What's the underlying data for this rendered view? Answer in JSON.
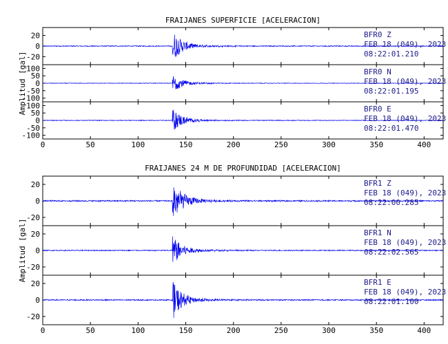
{
  "chart_data": [
    {
      "type": "line",
      "title": "FRAIJANES SUPERFICIE [ACELERACION]",
      "ylabel": "Amplitud [gal]",
      "xlim": [
        0,
        420
      ],
      "x_ticks": [
        "0",
        "50",
        "100",
        "150",
        "200",
        "250",
        "300",
        "350",
        "400"
      ],
      "series": [
        {
          "station": "BFR0",
          "component": "Z",
          "date": "FEB 18 (049), 2023",
          "time": "08:22:01.210",
          "ylim": [
            -35,
            35
          ],
          "y_ticks": [
            "20",
            "0",
            "-20"
          ],
          "onset_x": 136,
          "peak": 28
        },
        {
          "station": "BFR0",
          "component": "N",
          "date": "FEB 18 (049), 2023",
          "time": "08:22:01.195",
          "ylim": [
            -125,
            125
          ],
          "y_ticks": [
            "100",
            "50",
            "0",
            "-50",
            "-100"
          ],
          "onset_x": 136,
          "peak": 60
        },
        {
          "station": "BFR0",
          "component": "E",
          "date": "FEB 18 (049), 2023",
          "time": "08:22:01.470",
          "ylim": [
            -125,
            125
          ],
          "y_ticks": [
            "100",
            "50",
            "0",
            "-50",
            "-100"
          ],
          "onset_x": 136,
          "peak": 75
        }
      ]
    },
    {
      "type": "line",
      "title": "FRAIJANES 24 M DE PROFUNDIDAD [ACELERACION]",
      "ylabel": "Amplitud [gal]",
      "xlim": [
        0,
        420
      ],
      "x_ticks": [
        "0",
        "50",
        "100",
        "150",
        "200",
        "250",
        "300",
        "350",
        "400"
      ],
      "series": [
        {
          "station": "BFR1",
          "component": "Z",
          "date": "FEB 18 (049), 2023",
          "time": "08:22:00.285",
          "ylim": [
            -30,
            30
          ],
          "y_ticks": [
            "20",
            "0",
            "-20"
          ],
          "onset_x": 136,
          "peak": 25
        },
        {
          "station": "BFR1",
          "component": "N",
          "date": "FEB 18 (049), 2023",
          "time": "08:22:02.565",
          "ylim": [
            -30,
            30
          ],
          "y_ticks": [
            "20",
            "0",
            "-20"
          ],
          "onset_x": 136,
          "peak": 18
        },
        {
          "station": "BFR1",
          "component": "E",
          "date": "FEB 18 (049), 2023",
          "time": "08:22:01.100",
          "ylim": [
            -30,
            30
          ],
          "y_ticks": [
            "20",
            "0",
            "-20"
          ],
          "onset_x": 136,
          "peak": 22
        }
      ]
    }
  ],
  "colors": {
    "trace": "#0000ee",
    "axes": "#000000",
    "annotation": "#1a1a8a"
  }
}
